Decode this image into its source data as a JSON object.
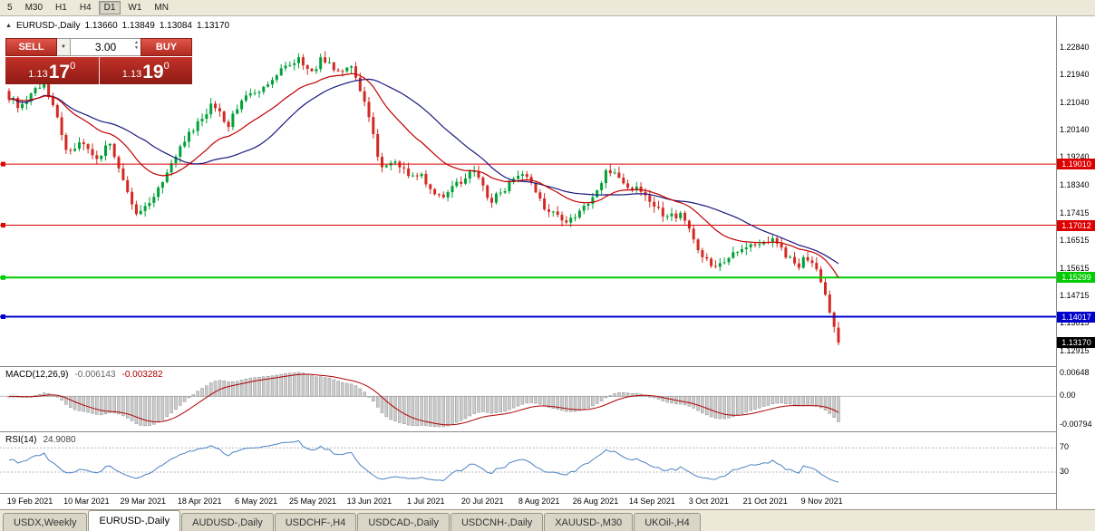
{
  "toolbar": {
    "timeframes": [
      {
        "label": "5",
        "active": false
      },
      {
        "label": "M30",
        "active": false
      },
      {
        "label": "H1",
        "active": false
      },
      {
        "label": "H4",
        "active": false
      },
      {
        "label": "D1",
        "active": true
      },
      {
        "label": "W1",
        "active": false
      },
      {
        "label": "MN",
        "active": false
      }
    ]
  },
  "chart_header": {
    "collapse_icon": "▲",
    "symbol": "EURUSD-,Daily",
    "open": "1.13660",
    "high": "1.13849",
    "low": "1.13084",
    "close": "1.13170"
  },
  "trade_widget": {
    "sell_label": "SELL",
    "buy_label": "BUY",
    "volume": "3.00",
    "sell_price": {
      "big": "1.13",
      "pips": "17",
      "pt": "0"
    },
    "buy_price": {
      "big": "1.13",
      "pips": "19",
      "pt": "0"
    }
  },
  "icons": {
    "dropdown": "▼",
    "spin_up": "▲",
    "spin_down": "▼"
  },
  "price_scale": {
    "ticks": [
      "1.22840",
      "1.21940",
      "1.21040",
      "1.20140",
      "1.19240",
      "1.18340",
      "1.17415",
      "1.16515",
      "1.15615",
      "1.14715",
      "1.13815",
      "1.12915"
    ]
  },
  "hlines": [
    {
      "price": 1.1901,
      "label": "1.19010",
      "color": "#dd0000",
      "width": 1
    },
    {
      "price": 1.17012,
      "label": "1.17012",
      "color": "#dd0000",
      "width": 1
    },
    {
      "price": 1.15299,
      "label": "1.15299",
      "color": "#00cc00",
      "width": 2
    },
    {
      "price": 1.14017,
      "label": "1.14017",
      "color": "#0000cc",
      "width": 2
    }
  ],
  "current_price": {
    "value": 1.1317,
    "label": "1.13170",
    "color": "#000000"
  },
  "macd": {
    "title": "MACD(12,26,9)",
    "value1": "-0.006143",
    "value2": "-0.003282",
    "scale": [
      "0.00648",
      "0.00",
      "-0.00794"
    ]
  },
  "rsi": {
    "title": "RSI(14)",
    "value": "24.9080",
    "levels": [
      70,
      30
    ],
    "scale": [
      "70",
      "30"
    ]
  },
  "xaxis": {
    "labels": [
      "19 Feb 2021",
      "10 Mar 2021",
      "29 Mar 2021",
      "18 Apr 2021",
      "6 May 2021",
      "25 May 2021",
      "13 Jun 2021",
      "1 Jul 2021",
      "20 Jul 2021",
      "8 Aug 2021",
      "26 Aug 2021",
      "14 Sep 2021",
      "3 Oct 2021",
      "21 Oct 2021",
      "9 Nov 2021"
    ]
  },
  "tabs": [
    {
      "label": "USDX,Weekly",
      "active": false
    },
    {
      "label": "EURUSD-,Daily",
      "active": true
    },
    {
      "label": "AUDUSD-,Daily",
      "active": false
    },
    {
      "label": "USDCHF-,H4",
      "active": false
    },
    {
      "label": "USDCAD-,Daily",
      "active": false
    },
    {
      "label": "USDCNH-,Daily",
      "active": false
    },
    {
      "label": "XAUUSD-,M30",
      "active": false
    },
    {
      "label": "UKOil-,H4",
      "active": false
    }
  ],
  "chart_data": {
    "type": "candlestick",
    "symbol": "EURUSD-",
    "timeframe": "Daily",
    "ohlc_current": {
      "open": 1.1366,
      "high": 1.13849,
      "low": 1.13084,
      "close": 1.1317
    },
    "y_range": {
      "top": 1.2355,
      "bottom": 1.1252
    },
    "num_candles": 190,
    "indicators": {
      "macd": {
        "fast": 12,
        "slow": 26,
        "signal": 9
      },
      "rsi": {
        "period": 14
      }
    },
    "colors": {
      "up": "#00a138",
      "down": "#d22a22",
      "ma_fast": "#c00000",
      "ma_slow": "#1a1a80",
      "hist": "#cccccc",
      "signal": "#b00000",
      "rsi_line": "#4a82c4"
    },
    "price_path": [
      [
        0.0,
        1.212
      ],
      [
        0.015,
        1.2085
      ],
      [
        0.03,
        1.215
      ],
      [
        0.042,
        1.217
      ],
      [
        0.055,
        1.208
      ],
      [
        0.071,
        1.1935
      ],
      [
        0.087,
        1.1985
      ],
      [
        0.104,
        1.191
      ],
      [
        0.12,
        1.1975
      ],
      [
        0.137,
        1.1845
      ],
      [
        0.153,
        1.1735
      ],
      [
        0.17,
        1.177
      ],
      [
        0.19,
        1.187
      ],
      [
        0.213,
        1.1985
      ],
      [
        0.23,
        1.204
      ],
      [
        0.246,
        1.2105
      ],
      [
        0.262,
        1.202
      ],
      [
        0.284,
        1.2125
      ],
      [
        0.306,
        1.215
      ],
      [
        0.328,
        1.2215
      ],
      [
        0.35,
        1.2245
      ],
      [
        0.366,
        1.2195
      ],
      [
        0.377,
        1.225
      ],
      [
        0.4,
        1.2195
      ],
      [
        0.412,
        1.2225
      ],
      [
        0.426,
        1.2115
      ],
      [
        0.437,
        1.204
      ],
      [
        0.448,
        1.1875
      ],
      [
        0.464,
        1.192
      ],
      [
        0.48,
        1.1865
      ],
      [
        0.497,
        1.1865
      ],
      [
        0.514,
        1.179
      ],
      [
        0.53,
        1.181
      ],
      [
        0.546,
        1.185
      ],
      [
        0.563,
        1.188
      ],
      [
        0.579,
        1.1775
      ],
      [
        0.596,
        1.1815
      ],
      [
        0.612,
        1.187
      ],
      [
        0.628,
        1.1845
      ],
      [
        0.645,
        1.176
      ],
      [
        0.661,
        1.1725
      ],
      [
        0.672,
        1.17
      ],
      [
        0.688,
        1.175
      ],
      [
        0.705,
        1.179
      ],
      [
        0.721,
        1.1885
      ],
      [
        0.732,
        1.187
      ],
      [
        0.749,
        1.182
      ],
      [
        0.765,
        1.1815
      ],
      [
        0.776,
        1.177
      ],
      [
        0.792,
        1.173
      ],
      [
        0.809,
        1.1735
      ],
      [
        0.82,
        1.169
      ],
      [
        0.836,
        1.16
      ],
      [
        0.852,
        1.156
      ],
      [
        0.869,
        1.1595
      ],
      [
        0.885,
        1.1625
      ],
      [
        0.902,
        1.164
      ],
      [
        0.918,
        1.1655
      ],
      [
        0.934,
        1.161
      ],
      [
        0.951,
        1.1565
      ],
      [
        0.962,
        1.16
      ],
      [
        0.973,
        1.156
      ],
      [
        0.984,
        1.1475
      ],
      [
        0.995,
        1.136
      ],
      [
        1.0,
        1.1317
      ]
    ]
  }
}
